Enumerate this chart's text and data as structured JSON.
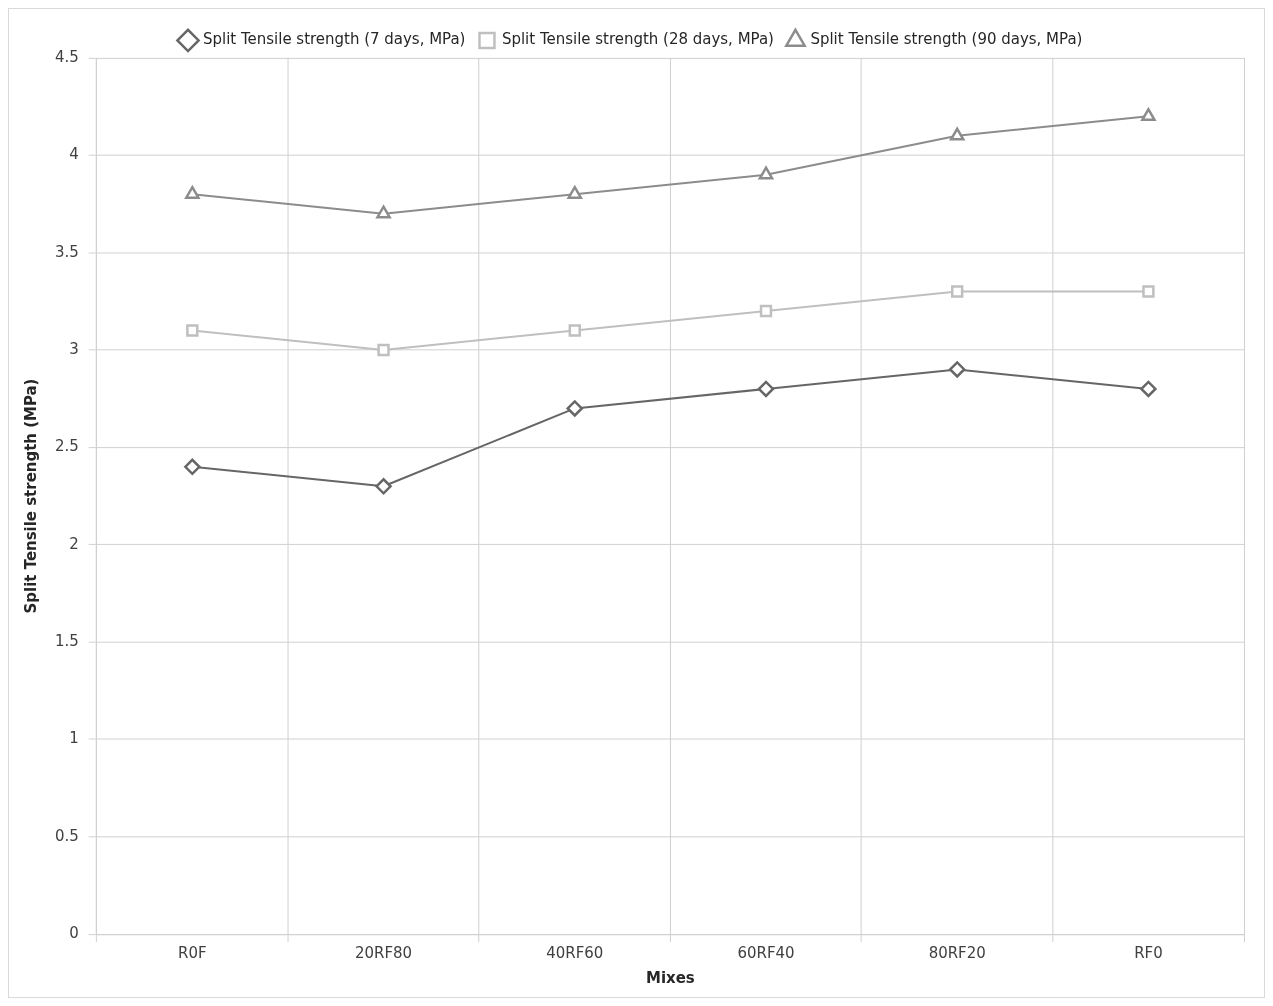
{
  "chart_data": {
    "type": "line",
    "xlabel": "Mixes",
    "ylabel": "Split Tensile strength (MPa)",
    "categories": [
      "R0F",
      "20RF80",
      "40RF60",
      "60RF40",
      "80RF20",
      "RF0"
    ],
    "series": [
      {
        "name": "Split Tensile strength (7 days, MPa)",
        "color": "#666666",
        "marker": "diamond",
        "values": [
          2.4,
          2.3,
          2.7,
          2.8,
          2.9,
          2.8
        ]
      },
      {
        "name": "Split Tensile strength (28 days, MPa)",
        "color": "#bfbfbf",
        "marker": "square",
        "values": [
          3.1,
          3.0,
          3.1,
          3.2,
          3.3,
          3.3
        ]
      },
      {
        "name": "Split Tensile strength (90 days, MPa)",
        "color": "#8c8c8c",
        "marker": "triangle",
        "values": [
          3.8,
          3.7,
          3.8,
          3.9,
          4.1,
          4.2
        ]
      }
    ],
    "ylim": [
      0,
      4.5
    ],
    "yticks": [
      0,
      0.5,
      1,
      1.5,
      2,
      2.5,
      3,
      3.5,
      4,
      4.5
    ],
    "grid": true,
    "legend": "top",
    "line_style": "solid"
  }
}
